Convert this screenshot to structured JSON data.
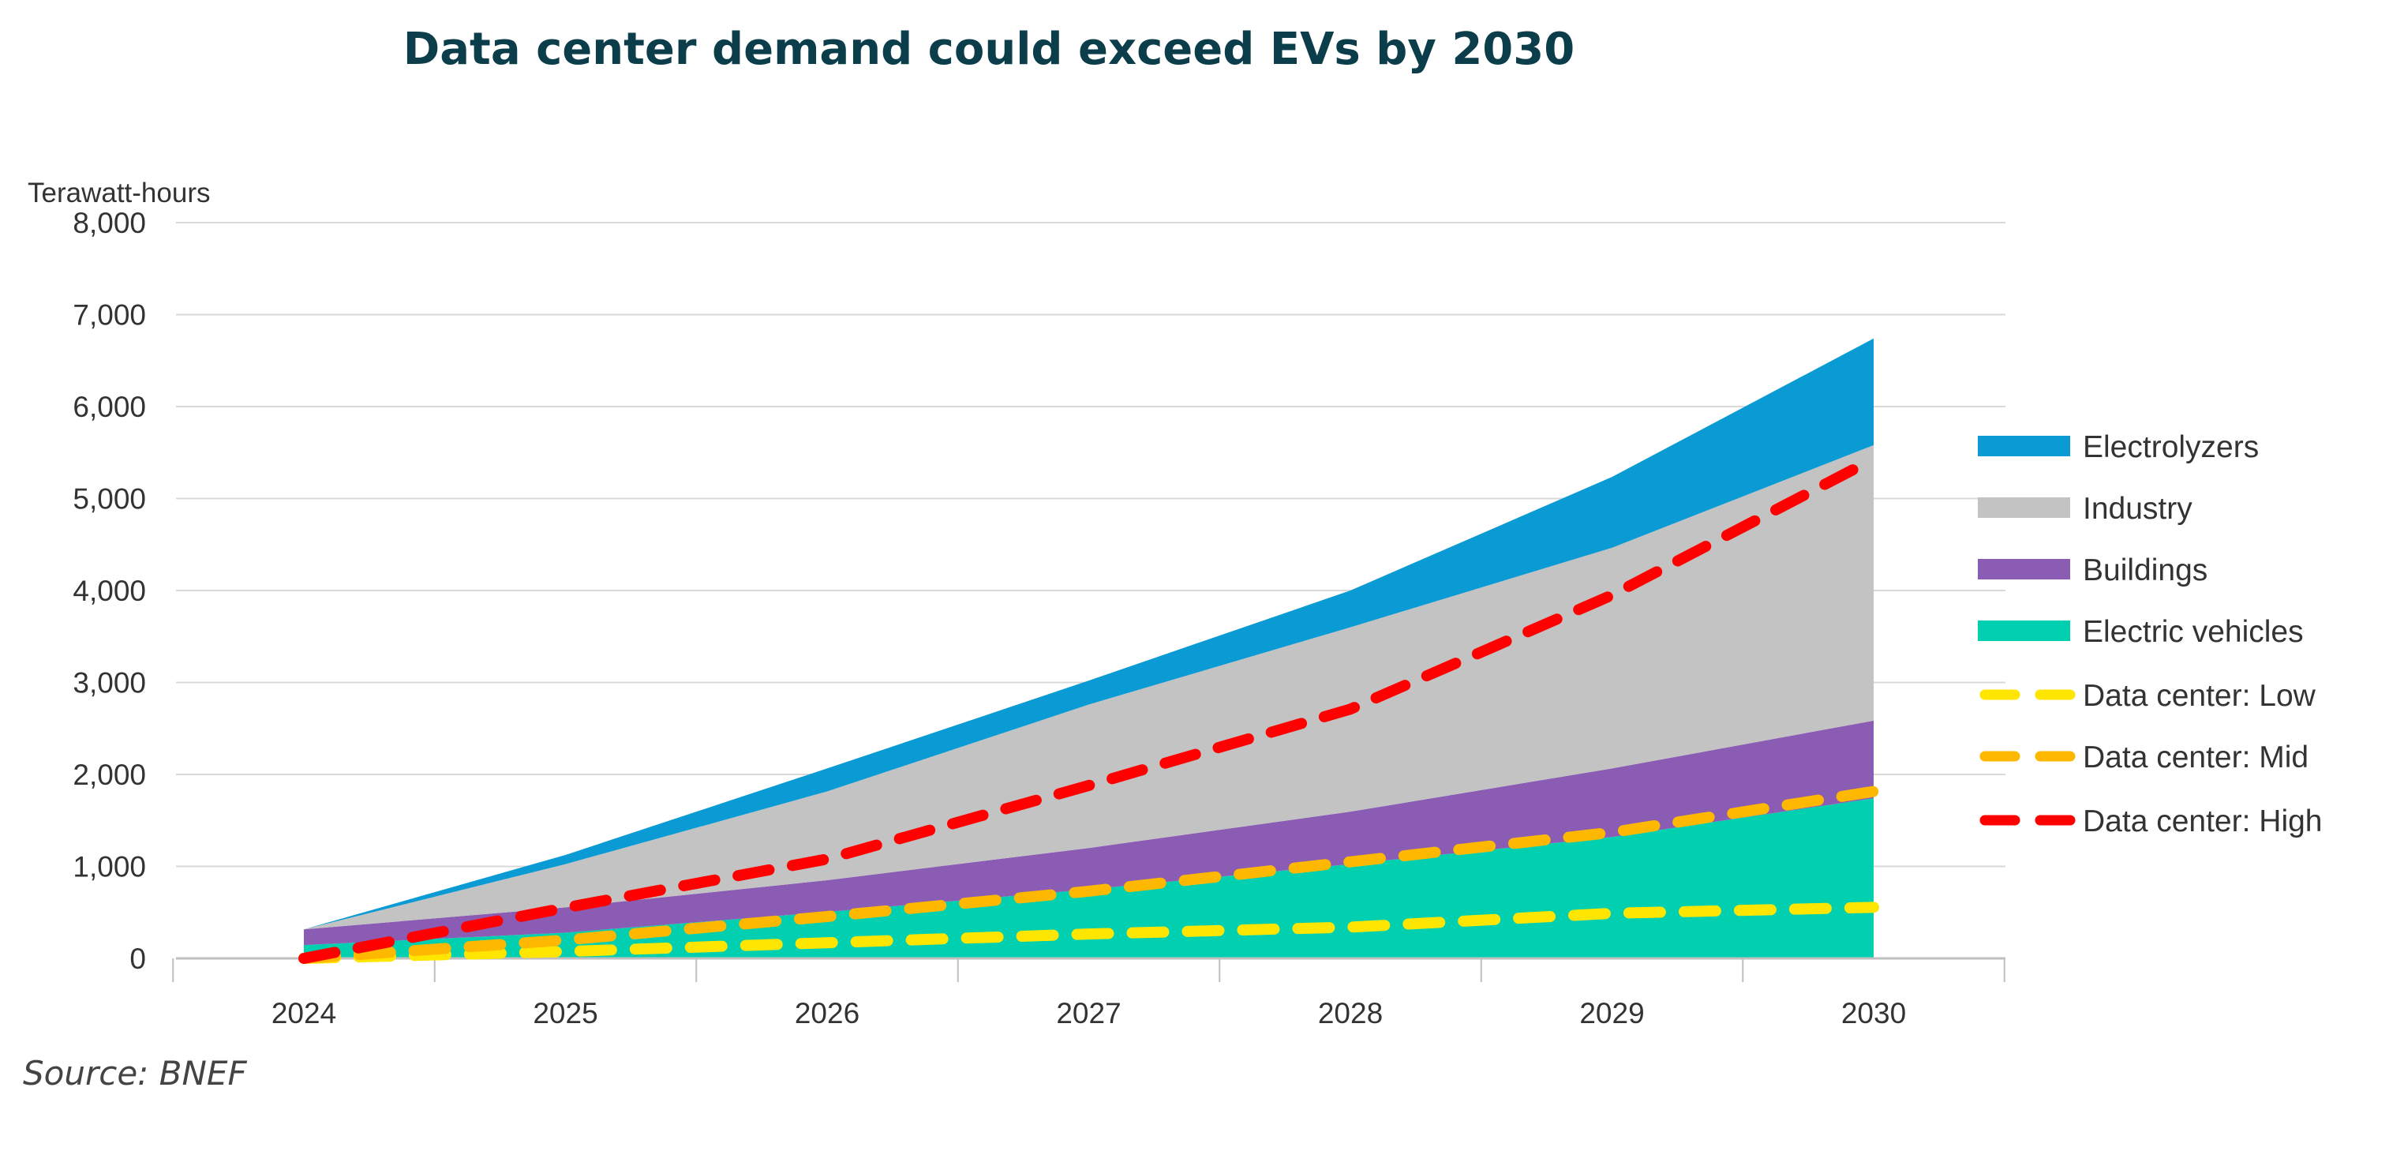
{
  "chart_data": {
    "type": "area",
    "title": "Data center demand could exceed EVs by 2030",
    "ylabel": "Terawatt-hours",
    "xlabel": "",
    "categories": [
      "2024",
      "2025",
      "2026",
      "2027",
      "2028",
      "2029",
      "2030"
    ],
    "ylim": [
      0,
      8000
    ],
    "yticks": [
      0,
      1000,
      2000,
      3000,
      4000,
      5000,
      6000,
      7000,
      8000
    ],
    "ytick_labels": [
      "0",
      "1,000",
      "2,000",
      "3,000",
      "4,000",
      "5,000",
      "6,000",
      "7,000",
      "8,000"
    ],
    "grid": true,
    "legend_position": "right",
    "stacked_series": [
      {
        "name": "Electric vehicles",
        "color": "#00d0b0",
        "values": [
          145,
          280,
          505,
          750,
          1025,
          1320,
          1740
        ]
      },
      {
        "name": "Buildings",
        "color": "#8a5cb4",
        "values": [
          170,
          275,
          345,
          450,
          570,
          745,
          845
        ]
      },
      {
        "name": "Industry",
        "color": "#c3c3c3",
        "values": [
          0,
          470,
          965,
          1560,
          2005,
          2400,
          2995
        ]
      },
      {
        "name": "Electrolyzers",
        "color": "#0a9ad4",
        "values": [
          0,
          100,
          250,
          260,
          400,
          770,
          1160
        ]
      }
    ],
    "line_series": [
      {
        "name": "Data center: Low",
        "color": "#ffe600",
        "style": "dashed",
        "values": [
          0,
          75,
          170,
          265,
          340,
          490,
          555
        ]
      },
      {
        "name": "Data center: Mid",
        "color": "#ffb800",
        "style": "dashed",
        "values": [
          0,
          200,
          455,
          730,
          1050,
          1370,
          1815
        ]
      },
      {
        "name": "Data center: High",
        "color": "#ff0000",
        "style": "dashed",
        "values": [
          0,
          550,
          1080,
          1880,
          2710,
          3950,
          5430
        ]
      }
    ],
    "legend_order": [
      "Electrolyzers",
      "Industry",
      "Buildings",
      "Electric vehicles",
      "Data center: Low",
      "Data center: Mid",
      "Data center: High"
    ]
  },
  "source": "Source: BNEF"
}
